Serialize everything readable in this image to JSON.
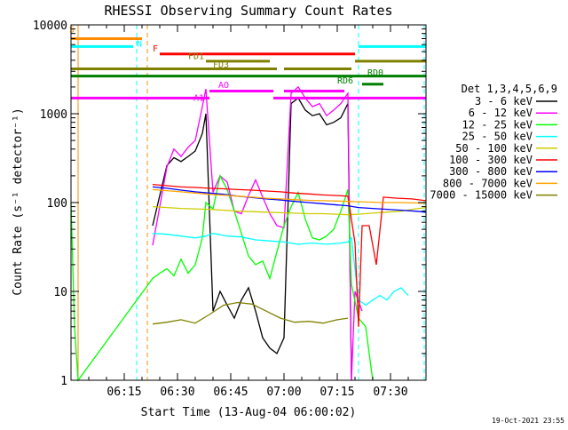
{
  "chart_data": {
    "type": "line",
    "title": "RHESSI Observing Summary Count Rates",
    "xlabel": "Start Time (13-Aug-04 06:00:02)",
    "ylabel": "Count Rate (s⁻¹ detector⁻¹)",
    "ylim": [
      1,
      10000
    ],
    "y_scale": "log",
    "xlim_minutes": [
      0,
      100
    ],
    "x_ticks": [
      {
        "t": 15,
        "label": "06:15"
      },
      {
        "t": 30,
        "label": "06:30"
      },
      {
        "t": 45,
        "label": "06:45"
      },
      {
        "t": 60,
        "label": "07:00"
      },
      {
        "t": 75,
        "label": "07:15"
      },
      {
        "t": 90,
        "label": "07:30"
      }
    ],
    "y_ticks": [
      {
        "v": 1,
        "label": "1"
      },
      {
        "v": 10,
        "label": "10"
      },
      {
        "v": 100,
        "label": "100"
      },
      {
        "v": 1000,
        "label": "1000"
      },
      {
        "v": 10000,
        "label": "10000"
      }
    ],
    "legend_title": "Det 1,3,4,5,6,9",
    "legend_position": "right",
    "grid": false,
    "series": [
      {
        "name": "3 - 6 keV",
        "color": "#000000",
        "points": [
          [
            23,
            55
          ],
          [
            25,
            120
          ],
          [
            27,
            260
          ],
          [
            29,
            320
          ],
          [
            31,
            290
          ],
          [
            33,
            330
          ],
          [
            35,
            380
          ],
          [
            37,
            600
          ],
          [
            38,
            1000
          ],
          [
            40,
            6
          ],
          [
            42,
            10
          ],
          [
            44,
            7
          ],
          [
            46,
            5
          ],
          [
            48,
            8
          ],
          [
            50,
            11
          ],
          [
            52,
            6
          ],
          [
            54,
            3
          ],
          [
            56,
            2.3
          ],
          [
            58,
            2
          ],
          [
            60,
            3
          ],
          [
            62,
            1300
          ],
          [
            64,
            1500
          ],
          [
            66,
            1100
          ],
          [
            68,
            950
          ],
          [
            70,
            1000
          ],
          [
            72,
            750
          ],
          [
            74,
            800
          ],
          [
            76,
            900
          ],
          [
            78,
            1300
          ],
          [
            79,
            1
          ]
        ]
      },
      {
        "name": "6 - 12 keV",
        "color": "#ff00ff",
        "points": [
          [
            23,
            33
          ],
          [
            25,
            90
          ],
          [
            27,
            250
          ],
          [
            29,
            400
          ],
          [
            31,
            330
          ],
          [
            33,
            420
          ],
          [
            35,
            500
          ],
          [
            37,
            1200
          ],
          [
            38,
            1900
          ],
          [
            40,
            130
          ],
          [
            42,
            200
          ],
          [
            44,
            170
          ],
          [
            46,
            80
          ],
          [
            48,
            75
          ],
          [
            50,
            120
          ],
          [
            52,
            180
          ],
          [
            54,
            115
          ],
          [
            56,
            75
          ],
          [
            58,
            55
          ],
          [
            60,
            52
          ],
          [
            62,
            1700
          ],
          [
            64,
            2000
          ],
          [
            66,
            1500
          ],
          [
            68,
            1200
          ],
          [
            70,
            1300
          ],
          [
            72,
            950
          ],
          [
            74,
            1100
          ],
          [
            76,
            1300
          ],
          [
            78,
            1700
          ],
          [
            79,
            1
          ],
          [
            80,
            10
          ],
          [
            82,
            6
          ]
        ]
      },
      {
        "name": "12 - 25 keV",
        "color": "#00ff00",
        "points": [
          [
            0,
            100
          ],
          [
            1,
            4
          ],
          [
            2,
            1
          ],
          [
            23,
            14
          ],
          [
            25,
            16
          ],
          [
            27,
            18
          ],
          [
            29,
            15
          ],
          [
            31,
            23
          ],
          [
            33,
            16
          ],
          [
            35,
            20
          ],
          [
            37,
            40
          ],
          [
            38,
            100
          ],
          [
            40,
            85
          ],
          [
            42,
            200
          ],
          [
            44,
            140
          ],
          [
            46,
            80
          ],
          [
            48,
            45
          ],
          [
            50,
            25
          ],
          [
            52,
            20
          ],
          [
            54,
            22
          ],
          [
            56,
            14
          ],
          [
            58,
            28
          ],
          [
            60,
            55
          ],
          [
            62,
            90
          ],
          [
            64,
            130
          ],
          [
            66,
            65
          ],
          [
            68,
            40
          ],
          [
            70,
            38
          ],
          [
            72,
            42
          ],
          [
            74,
            50
          ],
          [
            76,
            80
          ],
          [
            78,
            140
          ],
          [
            79,
            12
          ],
          [
            81,
            5
          ],
          [
            83,
            4
          ],
          [
            85,
            1
          ]
        ]
      },
      {
        "name": "25 - 50 keV",
        "color": "#00ffff",
        "points": [
          [
            23,
            45
          ],
          [
            27,
            44
          ],
          [
            31,
            42
          ],
          [
            35,
            40
          ],
          [
            38,
            42
          ],
          [
            40,
            45
          ],
          [
            44,
            42
          ],
          [
            48,
            41
          ],
          [
            52,
            38
          ],
          [
            56,
            37
          ],
          [
            60,
            36
          ],
          [
            64,
            34
          ],
          [
            68,
            35
          ],
          [
            72,
            34
          ],
          [
            76,
            35
          ],
          [
            78,
            36
          ],
          [
            79,
            40
          ],
          [
            81,
            8
          ],
          [
            83,
            7
          ],
          [
            85,
            8
          ],
          [
            87,
            9
          ],
          [
            89,
            8
          ],
          [
            91,
            10
          ],
          [
            93,
            11
          ],
          [
            95,
            9
          ]
        ]
      },
      {
        "name": "50 - 100 keV",
        "color": "#cccc00",
        "points": [
          [
            23,
            90
          ],
          [
            27,
            88
          ],
          [
            31,
            86
          ],
          [
            35,
            85
          ],
          [
            39,
            84
          ],
          [
            43,
            82
          ],
          [
            47,
            80
          ],
          [
            51,
            79
          ],
          [
            55,
            78
          ],
          [
            59,
            77
          ],
          [
            63,
            76
          ],
          [
            67,
            75
          ],
          [
            71,
            75
          ],
          [
            75,
            74
          ],
          [
            78,
            73
          ],
          [
            81,
            74
          ],
          [
            85,
            76
          ],
          [
            89,
            78
          ],
          [
            93,
            80
          ],
          [
            97,
            85
          ],
          [
            100,
            88
          ]
        ]
      },
      {
        "name": "100 - 300 keV",
        "color": "#ff0000",
        "points": [
          [
            23,
            160
          ],
          [
            27,
            155
          ],
          [
            31,
            150
          ],
          [
            35,
            148
          ],
          [
            39,
            145
          ],
          [
            43,
            143
          ],
          [
            47,
            140
          ],
          [
            51,
            138
          ],
          [
            55,
            135
          ],
          [
            59,
            132
          ],
          [
            63,
            128
          ],
          [
            67,
            125
          ],
          [
            71,
            122
          ],
          [
            75,
            120
          ],
          [
            78,
            118
          ],
          [
            80,
            35
          ],
          [
            81,
            4
          ],
          [
            82,
            55
          ],
          [
            84,
            55
          ],
          [
            86,
            20
          ],
          [
            88,
            115
          ],
          [
            92,
            112
          ],
          [
            96,
            110
          ],
          [
            100,
            105
          ]
        ]
      },
      {
        "name": "300 - 800 keV",
        "color": "#0000ff",
        "points": [
          [
            23,
            150
          ],
          [
            27,
            145
          ],
          [
            31,
            138
          ],
          [
            35,
            132
          ],
          [
            39,
            128
          ],
          [
            43,
            124
          ],
          [
            47,
            118
          ],
          [
            51,
            114
          ],
          [
            55,
            110
          ],
          [
            59,
            107
          ],
          [
            63,
            103
          ],
          [
            67,
            100
          ],
          [
            71,
            97
          ],
          [
            75,
            94
          ],
          [
            78,
            92
          ],
          [
            81,
            88
          ],
          [
            85,
            86
          ],
          [
            89,
            84
          ],
          [
            93,
            82
          ],
          [
            97,
            80
          ],
          [
            100,
            78
          ]
        ]
      },
      {
        "name": "800 - 7000 keV",
        "color": "#ffa500",
        "points": [
          [
            23,
            140
          ],
          [
            27,
            136
          ],
          [
            31,
            132
          ],
          [
            35,
            128
          ],
          [
            39,
            124
          ],
          [
            43,
            121
          ],
          [
            47,
            118
          ],
          [
            51,
            115
          ],
          [
            55,
            112
          ],
          [
            59,
            110
          ],
          [
            63,
            108
          ],
          [
            67,
            106
          ],
          [
            71,
            105
          ],
          [
            75,
            104
          ],
          [
            78,
            103
          ],
          [
            81,
            102
          ],
          [
            85,
            101
          ],
          [
            89,
            100
          ],
          [
            93,
            100
          ],
          [
            97,
            99
          ],
          [
            100,
            98
          ]
        ]
      },
      {
        "name": "7000 - 15000 keV",
        "color": "#808000",
        "points": [
          [
            23,
            4.3
          ],
          [
            27,
            4.5
          ],
          [
            31,
            4.8
          ],
          [
            35,
            4.4
          ],
          [
            39,
            5.5
          ],
          [
            43,
            7
          ],
          [
            47,
            7.5
          ],
          [
            51,
            7.2
          ],
          [
            55,
            6
          ],
          [
            59,
            5
          ],
          [
            63,
            4.5
          ],
          [
            67,
            4.6
          ],
          [
            71,
            4.4
          ],
          [
            75,
            4.8
          ],
          [
            78,
            5
          ]
        ]
      }
    ],
    "flag_bars": [
      {
        "label": "S",
        "color": "#ff8c00",
        "t0": 0,
        "t1": 20,
        "level": 7000
      },
      {
        "label": "N",
        "color": "#00ffff",
        "t0": 0,
        "t1": 17.5,
        "level": 5700
      },
      {
        "label": "N",
        "color": "#00ffff",
        "t0": 81,
        "t1": 100,
        "level": 5700
      },
      {
        "label": "F",
        "color": "#ff0000",
        "t0": 25,
        "t1": 80,
        "level": 4700
      },
      {
        "label": "FD1",
        "color": "#808000",
        "t0": 38,
        "t1": 56,
        "level": 3900
      },
      {
        "label": "FD1",
        "color": "#808000",
        "t0": 80,
        "t1": 100,
        "level": 3900
      },
      {
        "label": "FD3",
        "color": "#808000",
        "t0": 0,
        "t1": 58,
        "level": 3200
      },
      {
        "label": "FD3",
        "color": "#808000",
        "t0": 60,
        "t1": 79,
        "level": 3200
      },
      {
        "label": "RD0",
        "color": "#008000",
        "t0": 0,
        "t1": 100,
        "level": 2650
      },
      {
        "label": "RD6",
        "color": "#008000",
        "t0": 82,
        "t1": 88,
        "level": 2150
      },
      {
        "label": "AO",
        "color": "#ff00ff",
        "t0": 39,
        "t1": 57,
        "level": 1800
      },
      {
        "label": "AO",
        "color": "#ff00ff",
        "t0": 60,
        "t1": 77,
        "level": 1800
      },
      {
        "label": "A1",
        "color": "#ff00ff",
        "t0": 0,
        "t1": 39,
        "level": 1500
      },
      {
        "label": "A1",
        "color": "#ff00ff",
        "t0": 57,
        "t1": 100,
        "level": 1500
      }
    ],
    "bar_labels": [
      {
        "text": "S",
        "color": "#ff8c00",
        "t": -0.5,
        "level": 8200
      },
      {
        "text": "N",
        "color": "#00ffff",
        "t": 18.5,
        "level": 5700
      },
      {
        "text": "F",
        "color": "#ff0000",
        "t": 23,
        "level": 5000
      },
      {
        "text": "FD1",
        "color": "#808000",
        "t": 33,
        "level": 4100
      },
      {
        "text": "FD3",
        "color": "#808000",
        "t": 40,
        "level": 3300
      },
      {
        "text": "RD0",
        "color": "#008000",
        "t": 83.5,
        "level": 2700
      },
      {
        "text": "RD6",
        "color": "#008000",
        "t": 75,
        "level": 2200
      },
      {
        "text": "AO",
        "color": "#ff00ff",
        "t": 41.5,
        "level": 1950
      },
      {
        "text": "A1",
        "color": "#ff00ff",
        "t": 34.5,
        "level": 1400
      }
    ],
    "vlines": [
      {
        "t": 2,
        "color": "#ff8c00",
        "style": "solid"
      },
      {
        "t": 18.5,
        "color": "#00ffff",
        "style": "dashed"
      },
      {
        "t": 21.5,
        "color": "#ff8c00",
        "style": "dashed"
      },
      {
        "t": 81,
        "color": "#00ffff",
        "style": "dashed"
      },
      {
        "t": 99.5,
        "color": "#00ffff",
        "style": "dashed"
      }
    ],
    "footer_date": "19-Oct-2021 23:55"
  }
}
